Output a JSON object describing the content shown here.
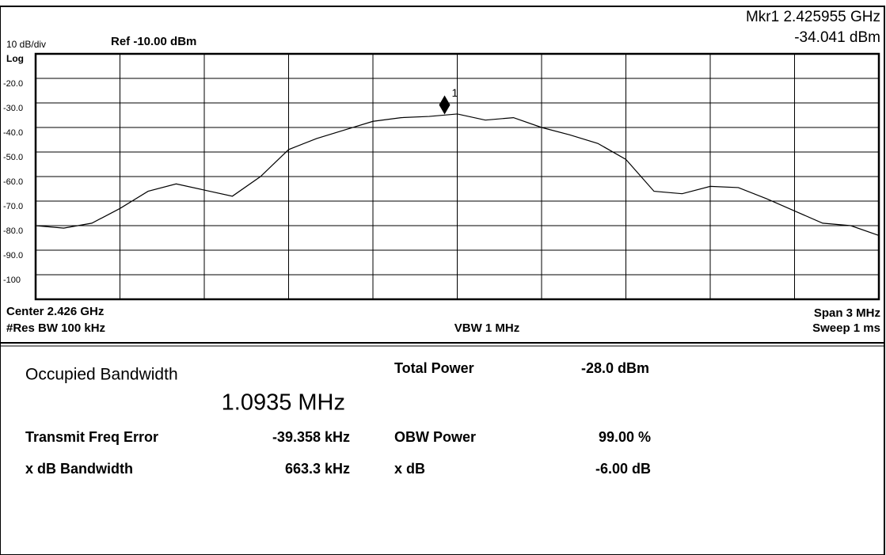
{
  "chart_data": {
    "type": "line",
    "scale_label": "10 dB/div",
    "ref_label": "Ref -10.00 dBm",
    "scale_type": "Log",
    "center_label": "Center 2.426 GHz",
    "span_label": "Span 3 MHz",
    "rbw_label": "#Res BW 100 kHz",
    "vbw_label": "VBW 1 MHz",
    "sweep_label": "Sweep 1 ms",
    "marker": {
      "name": "Mkr1",
      "number": "1",
      "x": 2.425955,
      "value": -34.041,
      "x_label": "2.425955 GHz",
      "value_label": "-34.041 dBm"
    },
    "x": [
      2.4245,
      2.4246,
      2.4247,
      2.4248,
      2.4249,
      2.425,
      2.4251,
      2.4252,
      2.4253,
      2.4254,
      2.4255,
      2.4256,
      2.4257,
      2.4258,
      2.4259,
      2.426,
      2.4261,
      2.4262,
      2.4263,
      2.4264,
      2.4265,
      2.4266,
      2.4267,
      2.4268,
      2.4269,
      2.427,
      2.4271,
      2.4272,
      2.4273,
      2.4274,
      2.4275
    ],
    "series": [
      {
        "color": "#000000",
        "values": [
          -80,
          -81,
          -79,
          -73,
          -66,
          -63,
          -65.5,
          -68,
          -60,
          -49,
          -44.5,
          -41,
          -37.5,
          -36,
          -35.5,
          -34.5,
          -37,
          -36,
          -40,
          -43,
          -46.5,
          -53,
          -66,
          -67,
          -64,
          -64.5,
          -69,
          -74,
          -79,
          -80,
          -84
        ]
      }
    ],
    "xlim": [
      2.4245,
      2.4275
    ],
    "xticks": [
      2.4245,
      2.4248,
      2.4251,
      2.4254,
      2.4257,
      2.426,
      2.4263,
      2.4266,
      2.4269,
      2.4272,
      2.4275
    ],
    "ylim": [
      -110,
      -10
    ],
    "yticks": [
      {
        "value": -20,
        "label": "-20.0"
      },
      {
        "value": -30,
        "label": "-30.0"
      },
      {
        "value": -40,
        "label": "-40.0"
      },
      {
        "value": -50,
        "label": "-50.0"
      },
      {
        "value": -60,
        "label": "-60.0"
      },
      {
        "value": -70,
        "label": "-70.0"
      },
      {
        "value": -80,
        "label": "-80.0"
      },
      {
        "value": -90,
        "label": "-90.0"
      },
      -100
    ],
    "grid": true
  },
  "results": {
    "title": "Occupied Bandwidth",
    "bandwidth": "1.0935 MHz",
    "rows": [
      [
        "Total Power",
        "-28.0 dBm"
      ],
      [
        "Transmit Freq Error",
        "-39.358 kHz"
      ],
      [
        "OBW Power",
        "99.00 %"
      ],
      [
        "x dB Bandwidth",
        "663.3 kHz"
      ],
      [
        "x dB",
        "-6.00 dB"
      ]
    ]
  }
}
